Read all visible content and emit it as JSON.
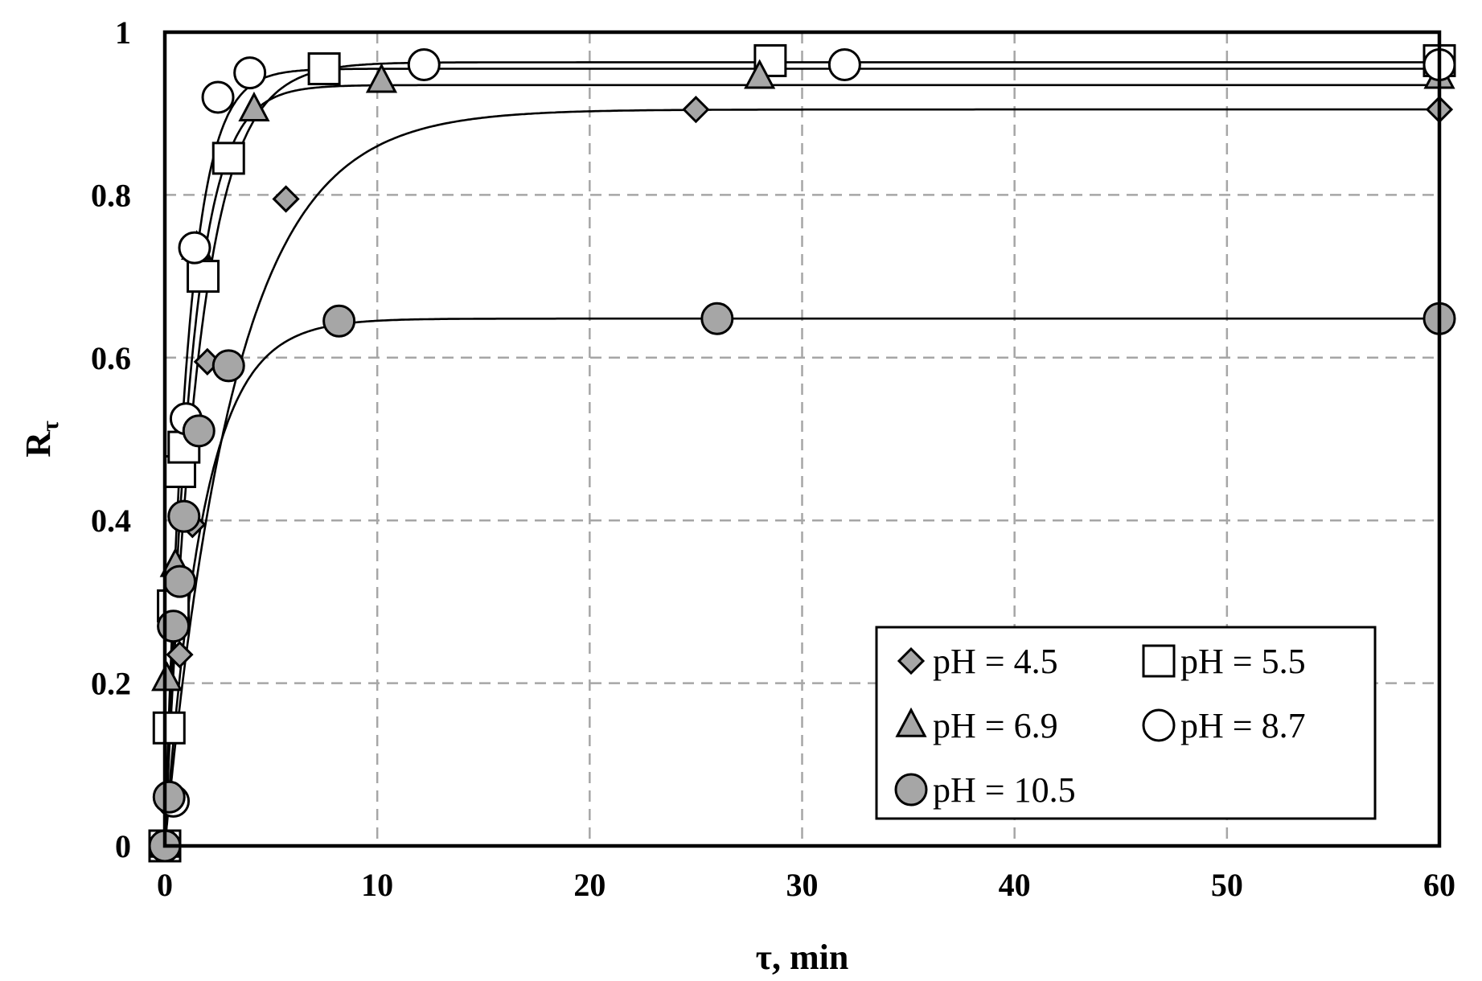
{
  "chart_data": {
    "type": "scatter",
    "xlabel": "τ, min",
    "ylabel_main": "R",
    "ylabel_sub": "τ",
    "xlim": [
      0,
      60
    ],
    "ylim": [
      0,
      1
    ],
    "x_ticks": [
      0,
      10,
      20,
      30,
      40,
      50,
      60
    ],
    "y_ticks": [
      0,
      0.2,
      0.4,
      0.6,
      0.8,
      1
    ],
    "y_tick_labels": [
      "0",
      "0.2",
      "0.4",
      "0.6",
      "0.8",
      "1"
    ],
    "grid": true,
    "legend_position": "bottom-right",
    "series": [
      {
        "name": "pH = 4.5",
        "marker": "diamond",
        "fill": "#a6a6a6",
        "fit": {
          "a": 0.905,
          "k": 0.3
        },
        "x": [
          0,
          0.3,
          0.7,
          1.3,
          2.0,
          5.7,
          25,
          60
        ],
        "y": [
          0,
          0.15,
          0.235,
          0.395,
          0.595,
          0.795,
          0.905,
          0.905
        ]
      },
      {
        "name": "pH = 5.5",
        "marker": "square",
        "fill": "#ffffff",
        "fit": {
          "a": 0.963,
          "k": 0.62
        },
        "x": [
          0,
          0.2,
          0.4,
          0.7,
          0.9,
          1.8,
          3.0,
          7.5,
          28.5,
          60
        ],
        "y": [
          0,
          0.145,
          0.295,
          0.46,
          0.49,
          0.7,
          0.845,
          0.955,
          0.965,
          0.965
        ]
      },
      {
        "name": "pH = 6.9",
        "marker": "triangle",
        "fill": "#a6a6a6",
        "fit": {
          "a": 0.935,
          "k": 0.8
        },
        "x": [
          0,
          0.1,
          0.5,
          1.5,
          4.2,
          10.2,
          28,
          60
        ],
        "y": [
          0,
          0.205,
          0.345,
          0.735,
          0.905,
          0.94,
          0.945,
          0.945
        ]
      },
      {
        "name": "pH = 8.7",
        "marker": "circle",
        "fill": "#ffffff",
        "fit": {
          "a": 0.955,
          "k": 0.95
        },
        "x": [
          0,
          0.4,
          1.0,
          1.4,
          2.5,
          4.0,
          12.2,
          32,
          60
        ],
        "y": [
          0,
          0.055,
          0.525,
          0.735,
          0.92,
          0.95,
          0.96,
          0.96,
          0.96
        ]
      },
      {
        "name": "pH = 10.5",
        "marker": "circle",
        "fill": "#a6a6a6",
        "fit": {
          "a": 0.648,
          "k": 0.55
        },
        "x": [
          0,
          0.2,
          0.4,
          0.7,
          0.9,
          1.6,
          3.0,
          8.2,
          26,
          60
        ],
        "y": [
          0,
          0.06,
          0.27,
          0.325,
          0.405,
          0.51,
          0.59,
          0.645,
          0.648,
          0.648
        ]
      }
    ]
  }
}
